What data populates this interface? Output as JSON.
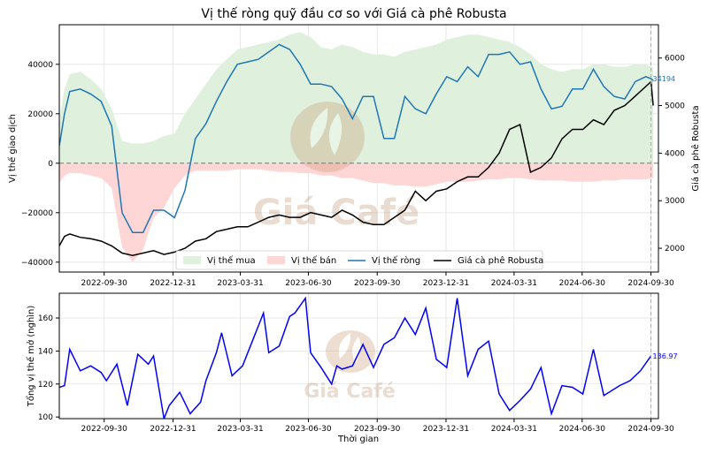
{
  "colors": {
    "buy_fill": "#dff0dd",
    "sell_fill": "#ffd6d6",
    "net_line": "#1f77b4",
    "price_line": "#000000",
    "oi_line": "#0000ff",
    "zero_line": "#777777",
    "cursor_line": "#aaaaaa"
  },
  "watermark": {
    "text": "Giá Café"
  },
  "chart_data": [
    {
      "type": "area",
      "title": "Vị thế ròng quỹ đầu cơ so với Giá cà phê Robusta",
      "ylabel": "Vị thế giao dịch",
      "y2label": "Giá cà phê Robusta",
      "x_ticks": [
        "2022-09-30",
        "2022-12-31",
        "2023-03-31",
        "2023-06-30",
        "2023-09-30",
        "2023-12-31",
        "2024-03-31",
        "2024-06-30",
        "2024-09-30"
      ],
      "x_range": [
        "2022-08-01",
        "2024-10-10"
      ],
      "ylim": [
        -44000,
        56000
      ],
      "yticks": [
        -40000,
        -20000,
        0,
        20000,
        40000
      ],
      "ytick_labels": [
        "−40000",
        "−20000",
        "0",
        "20000",
        "40000"
      ],
      "y2lim": [
        1500,
        6700
      ],
      "y2ticks": [
        2000,
        3000,
        4000,
        5000,
        6000
      ],
      "ytick2_labels": [
        "2000",
        "3000",
        "4000",
        "5000",
        "6000"
      ],
      "grid": true,
      "legend_position": "bottom-center",
      "legend": [
        "Vị thế mua",
        "Vị thế bán",
        "Vị thế ròng",
        "Giá cà phê Robusta"
      ],
      "cursor_date": "2024-09-30",
      "annotation": {
        "text": "34194",
        "date": "2024-09-30",
        "value": 34194
      },
      "x": [
        "2022-08-01",
        "2022-08-08",
        "2022-08-15",
        "2022-08-29",
        "2022-09-12",
        "2022-09-26",
        "2022-10-10",
        "2022-10-24",
        "2022-11-07",
        "2022-11-21",
        "2022-12-05",
        "2022-12-19",
        "2023-01-02",
        "2023-01-16",
        "2023-01-30",
        "2023-02-13",
        "2023-02-27",
        "2023-03-13",
        "2023-03-27",
        "2023-04-10",
        "2023-04-24",
        "2023-05-08",
        "2023-05-22",
        "2023-06-05",
        "2023-06-19",
        "2023-07-03",
        "2023-07-17",
        "2023-07-31",
        "2023-08-14",
        "2023-08-28",
        "2023-09-11",
        "2023-09-25",
        "2023-10-09",
        "2023-10-23",
        "2023-11-06",
        "2023-11-20",
        "2023-12-04",
        "2023-12-18",
        "2024-01-01",
        "2024-01-15",
        "2024-01-29",
        "2024-02-12",
        "2024-02-26",
        "2024-03-11",
        "2024-03-25",
        "2024-04-08",
        "2024-04-22",
        "2024-05-06",
        "2024-05-20",
        "2024-06-03",
        "2024-06-17",
        "2024-07-01",
        "2024-07-15",
        "2024-07-29",
        "2024-08-12",
        "2024-08-26",
        "2024-09-09",
        "2024-09-23",
        "2024-09-30",
        "2024-10-03"
      ],
      "series": [
        {
          "name": "Vị thế mua",
          "values": [
            18000,
            30000,
            36000,
            37000,
            34000,
            30000,
            22000,
            9000,
            8000,
            8000,
            9000,
            11000,
            12000,
            20000,
            26000,
            32000,
            38000,
            42000,
            46000,
            47000,
            48000,
            49000,
            50000,
            52000,
            53000,
            51000,
            47000,
            46000,
            48000,
            47000,
            45000,
            44000,
            44000,
            43000,
            45000,
            46000,
            47000,
            48000,
            50000,
            51000,
            52000,
            52000,
            51000,
            50000,
            49000,
            47000,
            44000,
            40000,
            38000,
            37000,
            38000,
            38000,
            40000,
            40000,
            39000,
            39000,
            40000,
            40000,
            39000,
            39000
          ]
        },
        {
          "name": "Vị thế bán",
          "values": [
            -8000,
            -5000,
            -4000,
            -4000,
            -5000,
            -6000,
            -10000,
            -34000,
            -40000,
            -35000,
            -22000,
            -18000,
            -10000,
            -5000,
            -3000,
            -3000,
            -3000,
            -3000,
            -2500,
            -2500,
            -2500,
            -3000,
            -3500,
            -3500,
            -4000,
            -4000,
            -5000,
            -5000,
            -6000,
            -6000,
            -7000,
            -8000,
            -8000,
            -9000,
            -9000,
            -9500,
            -9500,
            -8500,
            -7500,
            -7500,
            -7500,
            -7000,
            -6500,
            -6500,
            -6000,
            -6000,
            -6500,
            -7000,
            -7000,
            -7000,
            -7500,
            -7500,
            -7500,
            -7000,
            -7000,
            -6500,
            -6500,
            -6500,
            -6000,
            -6000
          ]
        },
        {
          "name": "Vị thế ròng",
          "values": [
            7000,
            20000,
            29000,
            30000,
            28000,
            25000,
            15000,
            -20000,
            -28000,
            -28000,
            -19000,
            -19000,
            -22000,
            -11000,
            10000,
            16000,
            25000,
            33000,
            40000,
            41000,
            42000,
            45000,
            48000,
            46000,
            40000,
            32000,
            32000,
            31000,
            26000,
            18000,
            27000,
            27000,
            10000,
            10000,
            27000,
            22000,
            20000,
            28000,
            35000,
            33000,
            39000,
            35000,
            44000,
            44000,
            45000,
            40000,
            41000,
            30000,
            22000,
            23000,
            30000,
            30000,
            38000,
            31000,
            27000,
            26000,
            33000,
            35000,
            34194,
            33500
          ]
        },
        {
          "name": "Giá cà phê Robusta",
          "values": [
            2050,
            2250,
            2300,
            2230,
            2200,
            2150,
            2050,
            1900,
            1850,
            1900,
            1950,
            1870,
            1920,
            2000,
            2150,
            2200,
            2350,
            2400,
            2450,
            2450,
            2550,
            2650,
            2700,
            2650,
            2650,
            2750,
            2700,
            2650,
            2800,
            2700,
            2550,
            2500,
            2500,
            2650,
            2800,
            3200,
            3000,
            3200,
            3250,
            3400,
            3500,
            3500,
            3700,
            4000,
            4500,
            4600,
            3600,
            3700,
            3900,
            4300,
            4500,
            4500,
            4700,
            4600,
            4900,
            5000,
            5200,
            5400,
            5500,
            5000
          ]
        }
      ]
    },
    {
      "type": "line",
      "title": "",
      "xlabel": "Thời gian",
      "ylabel": "Tổng vị thế mở (nghìn)",
      "x_ticks": [
        "2022-09-30",
        "2022-12-31",
        "2023-03-31",
        "2023-06-30",
        "2023-09-30",
        "2023-12-31",
        "2024-03-31",
        "2024-06-30",
        "2024-09-30"
      ],
      "x_range": [
        "2022-08-01",
        "2024-10-10"
      ],
      "ylim": [
        99,
        175
      ],
      "yticks": [
        100,
        120,
        140,
        160
      ],
      "ytick_labels": [
        "100",
        "120",
        "140",
        "160"
      ],
      "grid": true,
      "cursor_date": "2024-09-30",
      "annotation": {
        "text": "136.97",
        "date": "2024-09-30",
        "value": 136.97
      },
      "x": [
        "2022-08-01",
        "2022-08-08",
        "2022-08-15",
        "2022-08-29",
        "2022-09-12",
        "2022-09-26",
        "2022-10-03",
        "2022-10-17",
        "2022-10-31",
        "2022-11-14",
        "2022-11-28",
        "2022-12-05",
        "2022-12-19",
        "2022-12-26",
        "2023-01-09",
        "2023-01-23",
        "2023-02-06",
        "2023-02-13",
        "2023-02-27",
        "2023-03-06",
        "2023-03-20",
        "2023-04-03",
        "2023-04-17",
        "2023-05-01",
        "2023-05-08",
        "2023-05-22",
        "2023-06-05",
        "2023-06-12",
        "2023-06-26",
        "2023-07-03",
        "2023-07-17",
        "2023-07-31",
        "2023-08-07",
        "2023-08-14",
        "2023-08-28",
        "2023-09-11",
        "2023-09-25",
        "2023-10-09",
        "2023-10-23",
        "2023-11-06",
        "2023-11-20",
        "2023-12-04",
        "2023-12-18",
        "2024-01-01",
        "2024-01-15",
        "2024-01-29",
        "2024-02-12",
        "2024-02-26",
        "2024-03-11",
        "2024-03-25",
        "2024-04-08",
        "2024-04-22",
        "2024-05-06",
        "2024-05-20",
        "2024-06-03",
        "2024-06-17",
        "2024-07-01",
        "2024-07-15",
        "2024-07-29",
        "2024-08-05",
        "2024-08-19",
        "2024-09-02",
        "2024-09-16",
        "2024-09-30"
      ],
      "series": [
        {
          "name": "",
          "values": [
            118,
            119,
            141,
            128,
            131,
            127,
            122,
            132,
            107,
            138,
            132,
            137,
            99,
            107,
            115,
            102,
            109,
            122,
            139,
            151,
            125,
            131,
            147,
            163,
            139,
            143,
            161,
            163,
            172,
            139,
            130,
            120,
            131,
            129,
            131,
            144,
            130,
            144,
            148,
            160,
            150,
            166,
            135,
            130,
            172,
            125,
            141,
            146,
            114,
            104,
            110,
            117,
            130,
            102,
            119,
            118,
            114,
            141,
            113,
            115,
            119,
            122,
            128,
            136.97
          ]
        }
      ]
    }
  ]
}
